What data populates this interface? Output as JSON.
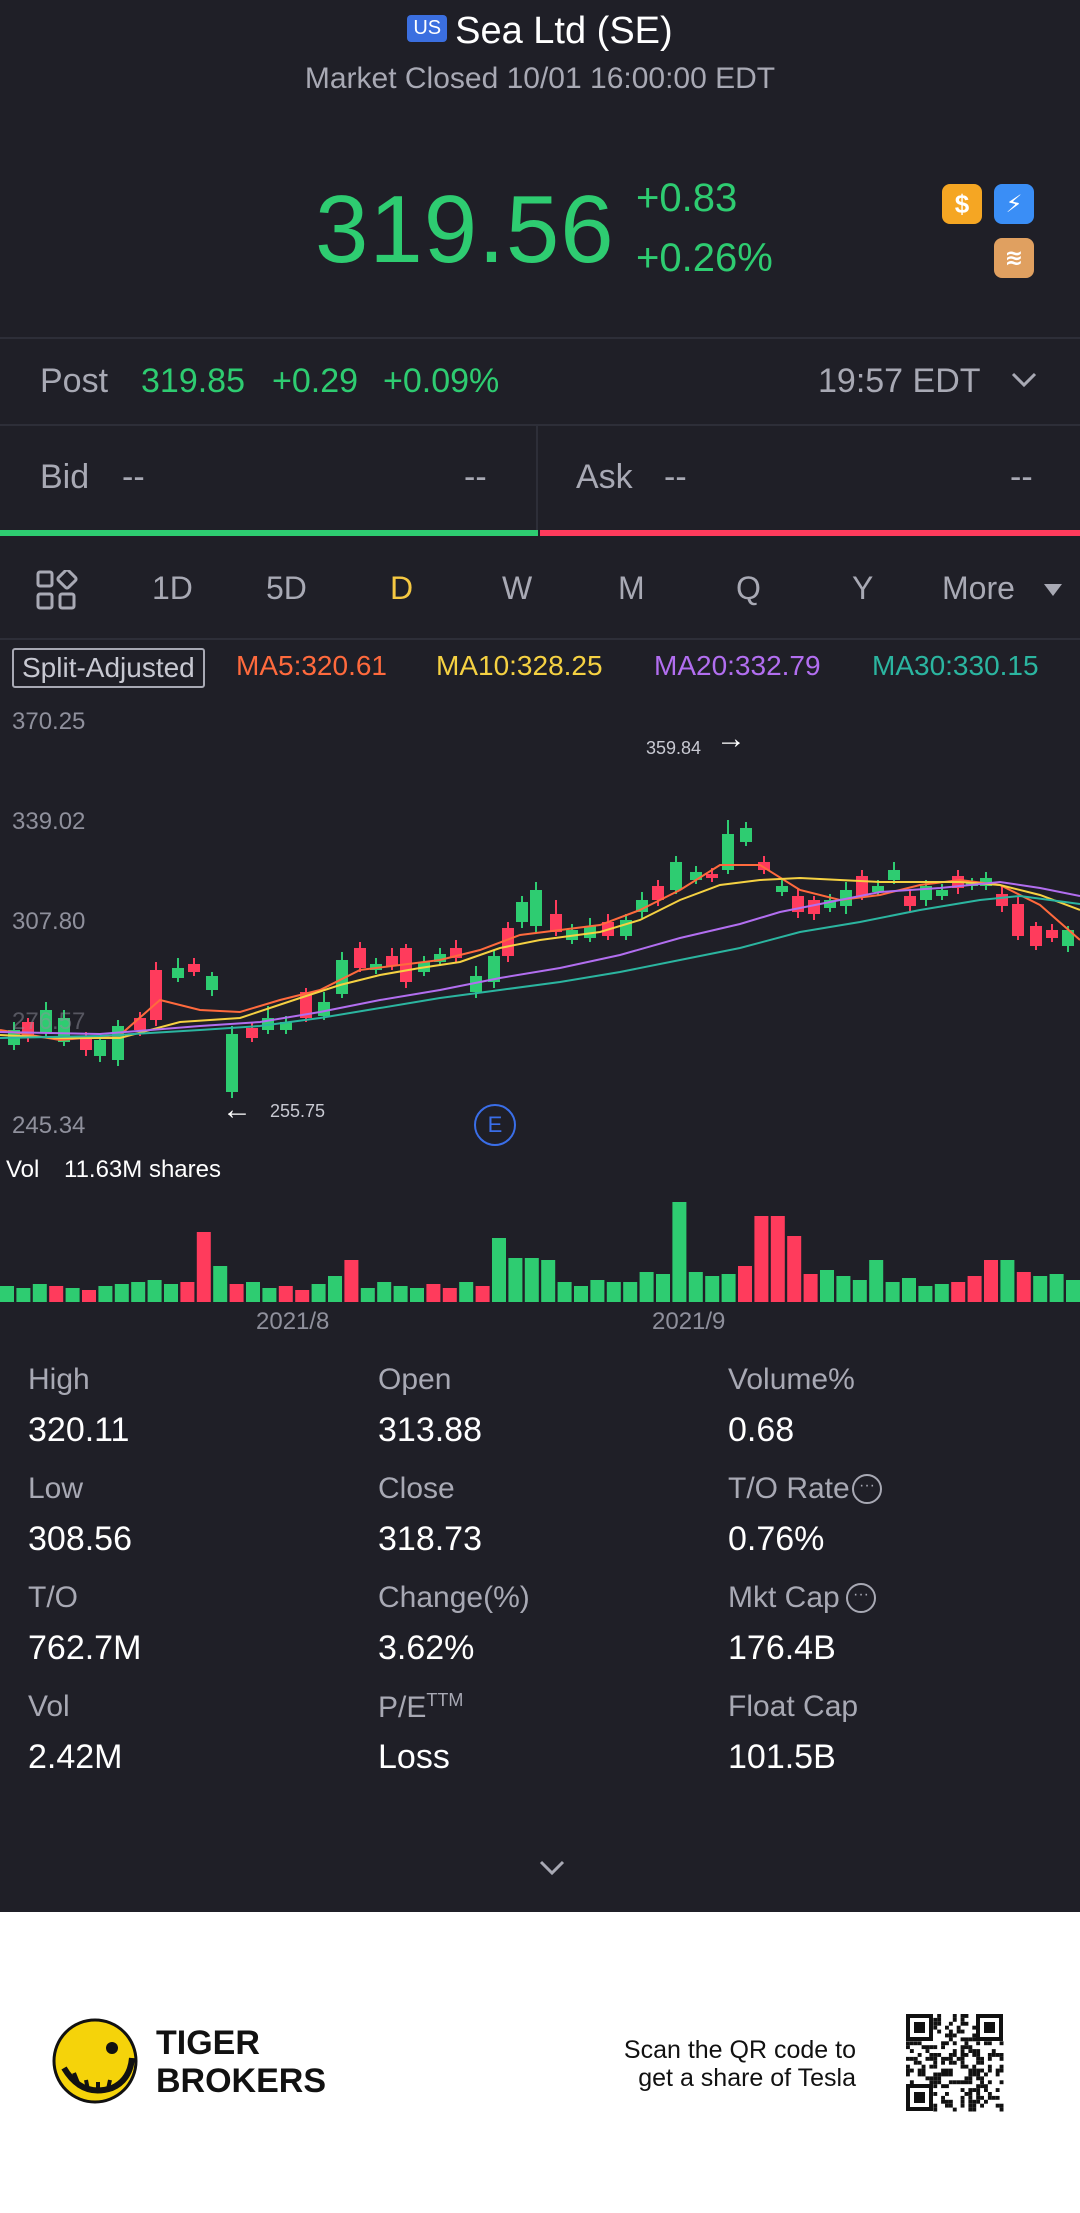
{
  "header": {
    "badge": "US",
    "title": "Sea Ltd (SE)",
    "subtitle": "Market Closed 10/01 16:00:00 EDT"
  },
  "quote": {
    "price": "319.56",
    "change": "+0.83",
    "change_pct": "+0.26%"
  },
  "post": {
    "label": "Post",
    "price": "319.85",
    "change": "+0.29",
    "change_pct": "+0.09%",
    "time": "19:57 EDT"
  },
  "bidask": {
    "bid_label": "Bid",
    "bid_price": "--",
    "bid_size": "--",
    "ask_label": "Ask",
    "ask_price": "--",
    "ask_size": "--"
  },
  "tabs": [
    "1D",
    "5D",
    "D",
    "W",
    "M",
    "Q",
    "Y",
    "More"
  ],
  "active_tab": "D",
  "ma": {
    "split": "Split-Adjusted",
    "ma5": "MA5:320.61",
    "ma10": "MA10:328.25",
    "ma20": "MA20:332.79",
    "ma30": "MA30:330.15",
    "colors": {
      "ma5": "#ff6a3d",
      "ma10": "#f5d142",
      "ma20": "#b26ef0",
      "ma30": "#2bb5a0"
    }
  },
  "chart": {
    "y_labels": [
      "370.25",
      "339.02",
      "307.80",
      "276.57",
      "245.34"
    ],
    "high_marker": "359.84",
    "low_marker": "255.75",
    "earnings_marker": "E",
    "vol_label": "Vol",
    "vol_value": "11.63M shares",
    "x_labels": [
      "2021/8",
      "2021/9"
    ]
  },
  "stats": [
    {
      "label": "High",
      "value": "320.11"
    },
    {
      "label": "Open",
      "value": "313.88"
    },
    {
      "label": "Volume%",
      "value": "0.68"
    },
    {
      "label": "Low",
      "value": "308.56"
    },
    {
      "label": "Close",
      "value": "318.73"
    },
    {
      "label": "T/O Rate",
      "value": "0.76%"
    },
    {
      "label": "T/O",
      "value": "762.7M"
    },
    {
      "label": "Change(%)",
      "value": "3.62%"
    },
    {
      "label": "Mkt Cap",
      "value": "176.4B"
    },
    {
      "label": "Vol",
      "value": "2.42M"
    },
    {
      "label": "P/E",
      "value": "Loss"
    },
    {
      "label": "Float Cap",
      "value": "101.5B"
    }
  ],
  "pe_sup": "TTM",
  "footer": {
    "brand_line1": "TIGER",
    "brand_line2": "BROKERS",
    "promo_line1": "Scan the QR code to",
    "promo_line2": "get a share of Tesla"
  }
}
